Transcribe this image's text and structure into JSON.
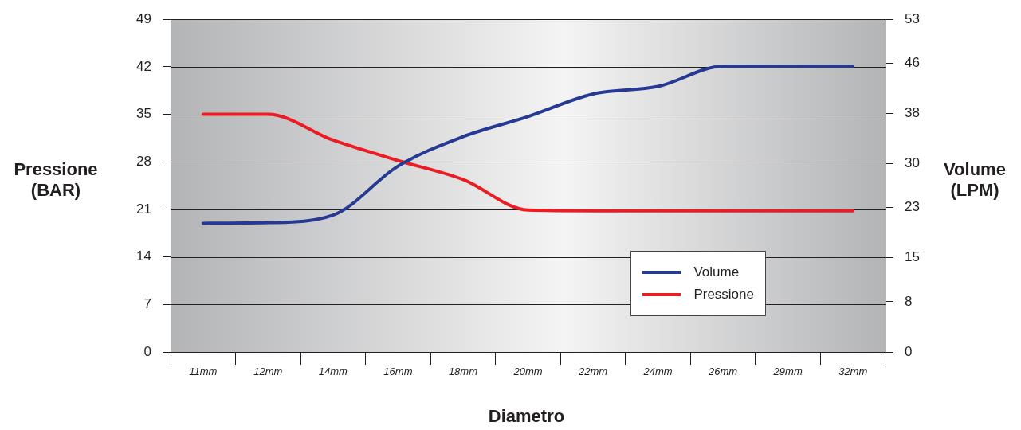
{
  "chart_data": {
    "type": "line",
    "xlabel": "Diametro",
    "ylabel": "Pressione (BAR)",
    "y2label": "Volume (LPM)",
    "categories": [
      "11mm",
      "12mm",
      "14mm",
      "16mm",
      "18mm",
      "20mm",
      "22mm",
      "24mm",
      "26mm",
      "29mm",
      "32mm"
    ],
    "series": [
      {
        "name": "Volume",
        "color": "#263a94",
        "axis": "y2",
        "values": [
          20.5,
          20.6,
          21.8,
          29.6,
          34.3,
          37.5,
          41.1,
          42.3,
          45.5,
          45.5,
          45.5
        ]
      },
      {
        "name": "Pressione",
        "color": "#ec1c24",
        "values": [
          35,
          35,
          31.2,
          28.2,
          25.4,
          20.9,
          20.8,
          20.8,
          20.8,
          20.8,
          20.8
        ]
      }
    ],
    "ylim": [
      0,
      49
    ],
    "yticks": [
      0,
      7,
      14,
      21,
      28,
      35,
      42,
      49
    ],
    "y2lim": [
      0,
      53
    ],
    "y2ticks": [
      0,
      8,
      15,
      23,
      30,
      38,
      46,
      53
    ],
    "grid": "y",
    "legend": "bottom right",
    "marker": "none",
    "line_style": "solid"
  }
}
